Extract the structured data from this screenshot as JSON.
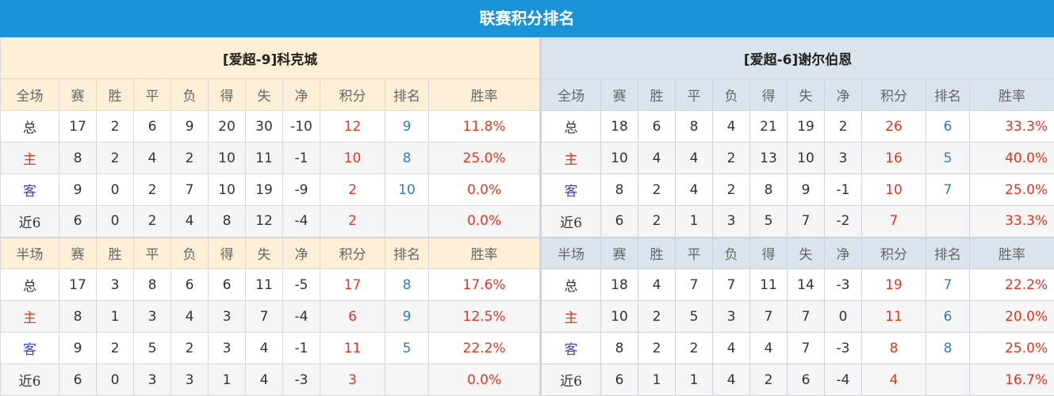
{
  "title": "联赛积分排名",
  "colors": {
    "header": "#1a94d6",
    "points": "#e8321e",
    "rank": "#2f7ec2"
  },
  "columns_full": [
    "全场",
    "赛",
    "胜",
    "平",
    "负",
    "得",
    "失",
    "净",
    "积分",
    "排名",
    "胜率"
  ],
  "columns_half": [
    "半场",
    "赛",
    "胜",
    "平",
    "负",
    "得",
    "失",
    "净",
    "积分",
    "排名",
    "胜率"
  ],
  "left": {
    "team": "[爱超-9]科克城",
    "full": [
      [
        "总",
        "17",
        "2",
        "6",
        "9",
        "20",
        "30",
        "-10",
        "12",
        "9",
        "11.8%"
      ],
      [
        "主",
        "8",
        "2",
        "4",
        "2",
        "10",
        "11",
        "-1",
        "10",
        "8",
        "25.0%"
      ],
      [
        "客",
        "9",
        "0",
        "2",
        "7",
        "10",
        "19",
        "-9",
        "2",
        "10",
        "0.0%"
      ],
      [
        "近6",
        "6",
        "0",
        "2",
        "4",
        "8",
        "12",
        "-4",
        "2",
        "",
        "0.0%"
      ]
    ],
    "half": [
      [
        "总",
        "17",
        "3",
        "8",
        "6",
        "6",
        "11",
        "-5",
        "17",
        "8",
        "17.6%"
      ],
      [
        "主",
        "8",
        "1",
        "3",
        "4",
        "3",
        "7",
        "-4",
        "6",
        "9",
        "12.5%"
      ],
      [
        "客",
        "9",
        "2",
        "5",
        "2",
        "3",
        "4",
        "-1",
        "11",
        "5",
        "22.2%"
      ],
      [
        "近6",
        "6",
        "0",
        "3",
        "3",
        "1",
        "4",
        "-3",
        "3",
        "",
        "0.0%"
      ]
    ]
  },
  "right": {
    "team": "[爱超-6]谢尔伯恩",
    "full": [
      [
        "总",
        "18",
        "6",
        "8",
        "4",
        "21",
        "19",
        "2",
        "26",
        "6",
        "33.3%"
      ],
      [
        "主",
        "10",
        "4",
        "4",
        "2",
        "13",
        "10",
        "3",
        "16",
        "5",
        "40.0%"
      ],
      [
        "客",
        "8",
        "2",
        "4",
        "2",
        "8",
        "9",
        "-1",
        "10",
        "7",
        "25.0%"
      ],
      [
        "近6",
        "6",
        "2",
        "1",
        "3",
        "5",
        "7",
        "-2",
        "7",
        "",
        "33.3%"
      ]
    ],
    "half": [
      [
        "总",
        "18",
        "4",
        "7",
        "7",
        "11",
        "14",
        "-3",
        "19",
        "7",
        "22.2%"
      ],
      [
        "主",
        "10",
        "2",
        "5",
        "3",
        "7",
        "7",
        "0",
        "11",
        "6",
        "20.0%"
      ],
      [
        "客",
        "8",
        "2",
        "2",
        "4",
        "4",
        "7",
        "-3",
        "8",
        "8",
        "25.0%"
      ],
      [
        "近6",
        "6",
        "1",
        "1",
        "4",
        "2",
        "6",
        "-4",
        "4",
        "",
        "16.7%"
      ]
    ]
  }
}
